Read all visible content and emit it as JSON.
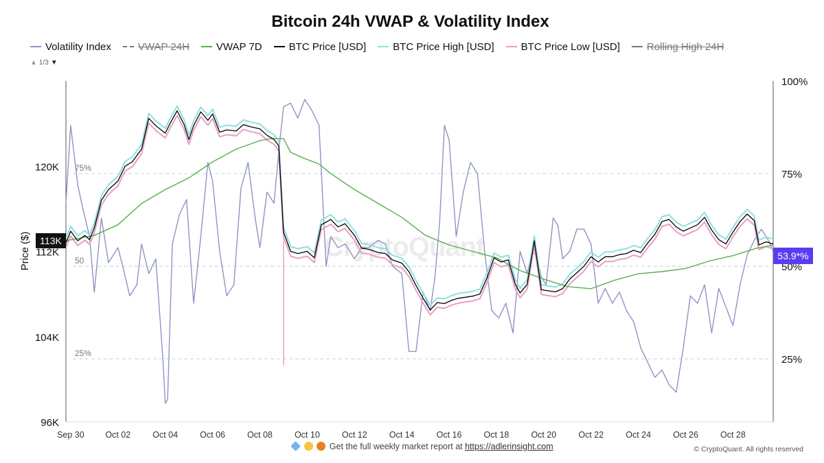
{
  "title": "Bitcoin 24h VWAP & Volatility Index",
  "legend": [
    {
      "label": "Volatility Index",
      "color": "#8f93c2",
      "dashed": false,
      "disabled": false
    },
    {
      "label": "VWAP 24H",
      "color": "#777777",
      "dashed": true,
      "disabled": true
    },
    {
      "label": "VWAP 7D",
      "color": "#5aae4e",
      "dashed": false,
      "disabled": false
    },
    {
      "label": "BTC Price [USD]",
      "color": "#000000",
      "dashed": false,
      "disabled": false
    },
    {
      "label": "BTC Price High [USD]",
      "color": "#8fdfe0",
      "dashed": false,
      "disabled": false
    },
    {
      "label": "BTC Price Low [USD]",
      "color": "#e79fc0",
      "dashed": false,
      "disabled": false
    },
    {
      "label": "Rolling High 24H",
      "color": "#777777",
      "dashed": false,
      "disabled": true
    }
  ],
  "legend_pager": {
    "text": "1/3",
    "up_icon": "triangle-up-icon",
    "down_icon": "triangle-down-icon"
  },
  "watermark": "CryptoQuant",
  "footer": {
    "text": "Get the full weekly market report at ",
    "link": "https://adlerinsight.com",
    "icons": [
      "gem-icon",
      "raised-hands-icon",
      "orange-circle-icon"
    ]
  },
  "copyright": "© CryptoQuant. All rights reserved",
  "chart_data": {
    "type": "line",
    "title": "Bitcoin 24h VWAP & Volatility Index",
    "ylabel": "Price ($)",
    "y_left": {
      "ticks": [
        "120K",
        "112K",
        "104K",
        "96K"
      ],
      "tick_values": [
        120000,
        112000,
        104000,
        96000
      ],
      "range": [
        96000,
        128000
      ]
    },
    "y_right": {
      "ticks": [
        "100%",
        "75%",
        "50%",
        "25%"
      ],
      "tick_values": [
        100,
        75,
        50,
        25
      ],
      "range": [
        8,
        100
      ]
    },
    "x_ticks": [
      "Sep 30",
      "Oct 02",
      "Oct 04",
      "Oct 06",
      "Oct 08",
      "Oct 10",
      "Oct 12",
      "Oct 14",
      "Oct 16",
      "Oct 18",
      "Oct 20",
      "Oct 22",
      "Oct 24",
      "Oct 26",
      "Oct 28"
    ],
    "x_tick_days": [
      2,
      4,
      6,
      8,
      10,
      12,
      14,
      16,
      18,
      20,
      22,
      24,
      26,
      28,
      30
    ],
    "x_range_days": [
      1.8,
      31.7
    ],
    "reference_lines": [
      {
        "label": "75%",
        "value": 75
      },
      {
        "label": "50",
        "value": 50
      },
      {
        "label": "25%",
        "value": 25
      }
    ],
    "current_price_label": "113K",
    "current_vol_label": "53.9*%",
    "series": [
      {
        "name": "BTC Price [USD]",
        "color": "#000000",
        "axis": "left",
        "x_days": [
          1.8,
          2,
          2.3,
          2.6,
          2.8,
          3.0,
          3.3,
          3.6,
          4.0,
          4.3,
          4.6,
          5.0,
          5.3,
          5.6,
          6.0,
          6.2,
          6.5,
          6.8,
          7.0,
          7.2,
          7.5,
          7.8,
          8.0,
          8.3,
          8.6,
          9.0,
          9.3,
          9.6,
          10.0,
          10.3,
          10.6,
          10.8,
          11.0,
          11.3,
          11.6,
          12.0,
          12.3,
          12.6,
          13.0,
          13.3,
          13.6,
          14.0,
          14.3,
          14.6,
          15.0,
          15.3,
          15.6,
          16.0,
          16.3,
          16.6,
          16.9,
          17.2,
          17.5,
          17.8,
          18.1,
          18.4,
          18.7,
          19.0,
          19.3,
          19.6,
          19.9,
          20.2,
          20.5,
          20.8,
          21.0,
          21.3,
          21.6,
          21.9,
          22.2,
          22.5,
          22.8,
          23.1,
          23.4,
          23.7,
          24.0,
          24.3,
          24.6,
          24.9,
          25.2,
          25.5,
          25.8,
          26.1,
          26.4,
          26.7,
          27.0,
          27.3,
          27.6,
          27.9,
          28.2,
          28.5,
          28.8,
          29.1,
          29.4,
          29.7,
          30.0,
          30.3,
          30.6,
          30.9,
          31.1,
          31.4,
          31.7
        ],
        "values": [
          112800,
          113900,
          113000,
          113500,
          113100,
          114200,
          116800,
          117800,
          118600,
          120000,
          120400,
          121600,
          124500,
          123800,
          123100,
          124000,
          125200,
          123900,
          122500,
          123800,
          125100,
          124300,
          124900,
          123200,
          123400,
          123300,
          123900,
          123700,
          123500,
          122900,
          122500,
          121900,
          113800,
          112000,
          111800,
          112000,
          111400,
          114500,
          115000,
          114300,
          114600,
          113500,
          112300,
          112200,
          111900,
          111800,
          111200,
          110900,
          110100,
          108800,
          107600,
          106500,
          107200,
          107100,
          107400,
          107600,
          107700,
          107800,
          108000,
          109500,
          111400,
          111000,
          111200,
          108900,
          108100,
          108900,
          113000,
          108400,
          108300,
          108200,
          108500,
          109400,
          110000,
          110600,
          111500,
          111000,
          111500,
          111500,
          111700,
          111800,
          112100,
          111900,
          112800,
          113600,
          114800,
          115000,
          114300,
          113900,
          114200,
          114500,
          115200,
          114000,
          113100,
          112700,
          113800,
          114800,
          115500,
          114900,
          112600,
          112900,
          112700
        ]
      },
      {
        "name": "VWAP 7D",
        "color": "#5aae4e",
        "axis": "left",
        "x_days": [
          1.8,
          3,
          4,
          5,
          6,
          7,
          8,
          9,
          10,
          10.5,
          11,
          11.3,
          11.8,
          12.5,
          13,
          14,
          15,
          16,
          17,
          18,
          19,
          20,
          21,
          22,
          23,
          24,
          25,
          26,
          27,
          28,
          29,
          30,
          31,
          31.7
        ],
        "values": [
          113000,
          113500,
          114500,
          116500,
          117800,
          118900,
          120400,
          121600,
          122400,
          122600,
          122600,
          121300,
          120800,
          120200,
          119300,
          117800,
          116500,
          115200,
          113500,
          112600,
          112000,
          111400,
          110200,
          109400,
          108700,
          108500,
          109300,
          109900,
          110100,
          110400,
          111100,
          111600,
          112300,
          112600
        ]
      },
      {
        "name": "Volatility Index",
        "color": "#8f93c2",
        "axis": "right",
        "x_days": [
          1.8,
          2,
          2.3,
          2.5,
          2.8,
          3.0,
          3.3,
          3.6,
          4.0,
          4.2,
          4.5,
          4.8,
          5.0,
          5.3,
          5.6,
          5.9,
          6.0,
          6.1,
          6.3,
          6.6,
          6.9,
          7.2,
          7.5,
          7.8,
          8.0,
          8.3,
          8.6,
          8.9,
          9.2,
          9.5,
          9.8,
          10.0,
          10.3,
          10.6,
          10.8,
          11.0,
          11.3,
          11.6,
          11.9,
          12.2,
          12.5,
          12.8,
          13.0,
          13.3,
          13.6,
          14.0,
          14.3,
          14.6,
          15.0,
          15.3,
          15.6,
          16.0,
          16.3,
          16.6,
          16.9,
          17.2,
          17.4,
          17.6,
          17.8,
          18.0,
          18.3,
          18.6,
          18.9,
          19.2,
          19.5,
          19.8,
          20.1,
          20.4,
          20.7,
          21.0,
          21.3,
          21.5,
          21.7,
          21.9,
          22.1,
          22.4,
          22.6,
          22.8,
          23.1,
          23.4,
          23.7,
          24.0,
          24.3,
          24.6,
          24.9,
          25.2,
          25.5,
          25.8,
          26.1,
          26.4,
          26.7,
          27.0,
          27.3,
          27.6,
          27.9,
          28.2,
          28.5,
          28.8,
          29.1,
          29.4,
          29.7,
          30.0,
          30.3,
          30.6,
          30.9,
          31.2,
          31.5,
          31.7
        ],
        "values": [
          67,
          88,
          72,
          66,
          58,
          43,
          63,
          51,
          55,
          50,
          42,
          45,
          56,
          48,
          52,
          25,
          13,
          14,
          56,
          64,
          68,
          40,
          58,
          78,
          73,
          54,
          42,
          45,
          71,
          78,
          63,
          55,
          70,
          67,
          81,
          93,
          94,
          90,
          95,
          92,
          88,
          50,
          58,
          55,
          56,
          52,
          55,
          55,
          57,
          56,
          50,
          48,
          27,
          27,
          43,
          38,
          47,
          62,
          88,
          84,
          58,
          70,
          78,
          75,
          54,
          38,
          36,
          40,
          32,
          54,
          48,
          54,
          53,
          47,
          45,
          63,
          61,
          52,
          54,
          60,
          60,
          56,
          40,
          44,
          40,
          43,
          38,
          35,
          28,
          24,
          20,
          22,
          18,
          16,
          28,
          42,
          40,
          45,
          32,
          44,
          39,
          34,
          45,
          53,
          57,
          60,
          57,
          54
        ]
      },
      {
        "name": "BTC Price High [USD]",
        "color": "#8fdfe0",
        "axis": "left",
        "note": "tracks BTC Price slightly above"
      },
      {
        "name": "BTC Price Low [USD]",
        "color": "#e79fc0",
        "axis": "left",
        "note": "tracks BTC Price slightly below, with spikes down to ~101K near Oct 11"
      }
    ]
  }
}
